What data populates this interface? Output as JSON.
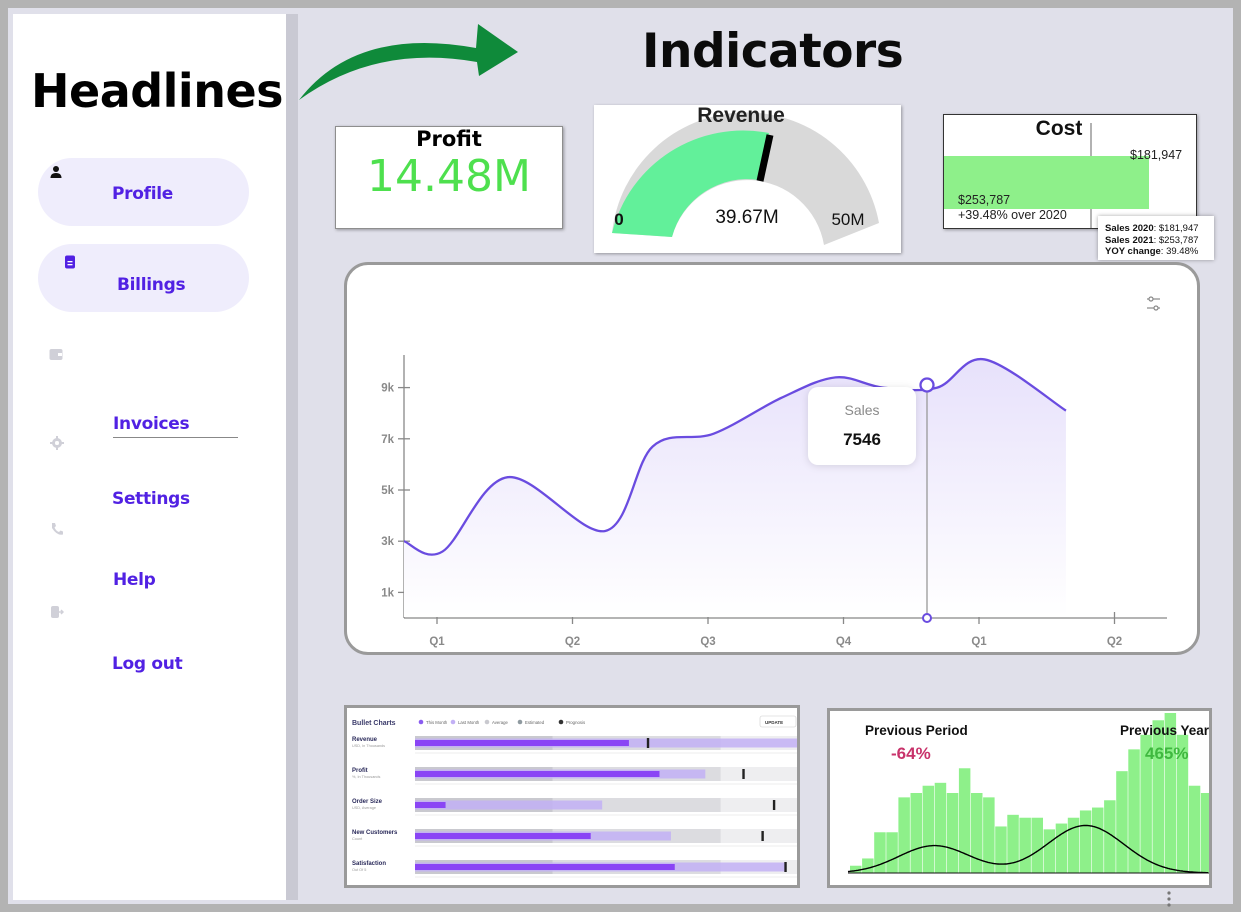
{
  "sidebar": {
    "title": "Headlines",
    "items": [
      {
        "label": "Profile",
        "icon": "user-icon"
      },
      {
        "label": "Billings",
        "icon": "document-icon"
      },
      {
        "label": "Invoices",
        "icon": "wallet-icon"
      },
      {
        "label": "Settings",
        "icon": "gear-icon"
      },
      {
        "label": "Help",
        "icon": "phone-icon"
      },
      {
        "label": "Log out",
        "icon": "logout-icon"
      }
    ]
  },
  "main": {
    "title": "Indicators",
    "arrow_color": "#0f8a3a"
  },
  "profit": {
    "title": "Profit",
    "value": "14.48M",
    "color": "#4ee04e"
  },
  "revenue": {
    "title": "Revenue",
    "value": "39.67M",
    "min_label": "0",
    "max_label": "50M",
    "value_fraction": 0.7934,
    "colors": {
      "fill": "#62f09a",
      "track": "#d9d9d9",
      "needle": "#000000"
    }
  },
  "cost": {
    "title": "Cost",
    "reference_label": "$181,947",
    "value_label": "$253,787",
    "change_label": "+39.48% over 2020",
    "bar_color": "#8ef08a",
    "tooltip": {
      "line1_key": "Sales 2020",
      "line1_val": ": $181,947",
      "line2_key": "Sales 2021",
      "line2_val": ": $253,787",
      "line3_key": "YOY change",
      "line3_val": ": 39.48%"
    }
  },
  "chart_data": [
    {
      "type": "line",
      "categories": [
        "Q1",
        "Q2",
        "Q3",
        "Q4",
        "Q1",
        "Q2"
      ],
      "y_ticks": [
        "1k",
        "3k",
        "5k",
        "7k",
        "9k"
      ],
      "ylim": [
        0,
        10000
      ],
      "series": [
        {
          "name": "Sales",
          "color": "#6a4ce0",
          "points": [
            [
              0.0,
              3000
            ],
            [
              0.3,
              2600
            ],
            [
              0.78,
              5500
            ],
            [
              1.5,
              3400
            ],
            [
              1.85,
              6700
            ],
            [
              2.3,
              7200
            ],
            [
              2.8,
              8600
            ],
            [
              3.2,
              9400
            ],
            [
              3.55,
              9000
            ],
            [
              3.95,
              9000
            ],
            [
              4.3,
              10100
            ],
            [
              4.9,
              8100
            ]
          ]
        }
      ],
      "tooltip": {
        "series": "Sales",
        "value": "7546"
      }
    },
    {
      "type": "bar",
      "subtype": "bullet",
      "title": "Bullet Charts",
      "legend": [
        "This Month",
        "Last Month",
        "Average",
        "Estimated",
        "Prognosis"
      ],
      "button": "UPDATE",
      "rows": [
        {
          "label": "Revenue",
          "sub": "USD, In Thousands",
          "this_month": 0.56,
          "last_month": 1.0,
          "marker": 0.61
        },
        {
          "label": "Profit",
          "sub": "%, In Thousands",
          "this_month": 0.64,
          "last_month": 0.76,
          "marker": 0.86
        },
        {
          "label": "Order Size",
          "sub": "USD, Average",
          "this_month": 0.08,
          "last_month": 0.49,
          "marker": 0.94
        },
        {
          "label": "New Customers",
          "sub": "Count",
          "this_month": 0.46,
          "last_month": 0.67,
          "marker": 0.91
        },
        {
          "label": "Satisfaction",
          "sub": "Out Of 5",
          "this_month": 0.68,
          "last_month": 0.97,
          "marker": 0.97
        }
      ]
    },
    {
      "type": "bar",
      "subtype": "histogram",
      "left_label": "Previous Period",
      "left_value": "-64%",
      "left_color": "#c8336b",
      "right_label": "Previous Year",
      "right_value": "465%",
      "right_color": "#3fb83f",
      "bar_color": "#8ef08a",
      "values": [
        0.05,
        0.1,
        0.28,
        0.28,
        0.52,
        0.55,
        0.6,
        0.62,
        0.55,
        0.72,
        0.55,
        0.52,
        0.32,
        0.4,
        0.38,
        0.38,
        0.3,
        0.34,
        0.38,
        0.43,
        0.45,
        0.5,
        0.7,
        0.85,
        0.95,
        1.05,
        1.1,
        0.95,
        0.6,
        0.55,
        0.48,
        0.38,
        0.3,
        0.24,
        0.12,
        0.04
      ]
    }
  ]
}
